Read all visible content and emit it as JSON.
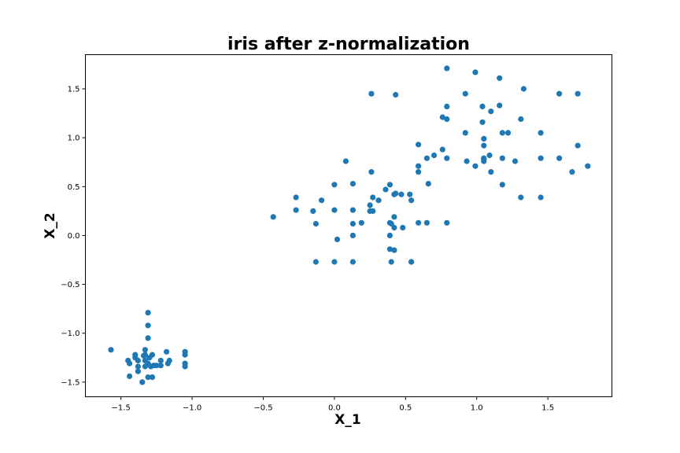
{
  "chart_data": {
    "type": "scatter",
    "title": "iris after z-normalization",
    "xlabel": "X_1",
    "ylabel": "X_2",
    "xlim": [
      -1.75,
      1.95
    ],
    "ylim": [
      -1.65,
      1.85
    ],
    "xticks": [
      -1.5,
      -1.0,
      -0.5,
      0.0,
      0.5,
      1.0,
      1.5
    ],
    "xtick_labels": [
      "−1.5",
      "−1.0",
      "−0.5",
      "0.0",
      "0.5",
      "1.0",
      "1.5"
    ],
    "yticks": [
      -1.5,
      -1.0,
      -0.5,
      0.0,
      0.5,
      1.0,
      1.5
    ],
    "ytick_labels": [
      "−1.5",
      "−1.0",
      "−0.5",
      "0.0",
      "0.5",
      "1.0",
      "1.5"
    ],
    "grid": false,
    "marker_color": "#1f77b4",
    "series": [
      {
        "x": [
          -1.57,
          -1.45,
          -1.44,
          -1.44,
          -1.4,
          -1.38,
          -1.38,
          -1.38,
          -1.35,
          -1.33,
          -1.33,
          -1.33,
          -1.33,
          -1.31,
          -1.31,
          -1.31,
          -1.31,
          -1.31,
          -1.29,
          -1.28,
          -1.28,
          -1.27,
          -1.22,
          -1.22,
          -1.18,
          -1.17,
          -1.16,
          -1.05,
          -1.05,
          -1.05,
          -1.05,
          -1.34,
          -1.3,
          -1.25,
          -1.4
        ],
        "y": [
          -1.17,
          -1.28,
          -1.31,
          -1.44,
          -1.22,
          -1.28,
          -1.34,
          -1.39,
          -1.5,
          -1.17,
          -1.22,
          -1.28,
          -1.34,
          -0.79,
          -0.92,
          -1.05,
          -1.31,
          -1.45,
          -1.34,
          -1.22,
          -1.45,
          -1.33,
          -1.28,
          -1.33,
          -1.19,
          -1.31,
          -1.28,
          -1.19,
          -1.22,
          -1.31,
          -1.34,
          -1.23,
          -1.25,
          -1.33,
          -1.25
        ]
      },
      {
        "x": [
          -0.43,
          -0.27,
          -0.27,
          -0.15,
          -0.13,
          -0.13,
          -0.09,
          0.0,
          0.0,
          0.0,
          0.02,
          0.08,
          0.13,
          0.13,
          0.13,
          0.13,
          0.13,
          0.19,
          0.25,
          0.25,
          0.26,
          0.26,
          0.27,
          0.27,
          0.31,
          0.36,
          0.39,
          0.39,
          0.39,
          0.39,
          0.4,
          0.4,
          0.42,
          0.42,
          0.42,
          0.43,
          0.42,
          0.43,
          0.47,
          0.48,
          0.53,
          0.54,
          0.54,
          0.54,
          0.59,
          0.59,
          0.59,
          0.59,
          0.65,
          0.65,
          0.66,
          0.7,
          0.76,
          0.76,
          0.79,
          0.79,
          0.79,
          0.79,
          0.79,
          0.92,
          0.92,
          0.93,
          0.99,
          0.99,
          1.04,
          1.04,
          1.05,
          1.05,
          1.05,
          1.05,
          1.05,
          1.09,
          1.1,
          1.1,
          1.16,
          1.16,
          1.18,
          1.18,
          1.18,
          1.22,
          1.27,
          1.31,
          1.31,
          1.33,
          1.45,
          1.45,
          1.45,
          1.58,
          1.58,
          1.67,
          1.71,
          1.71,
          1.78
        ],
        "y": [
          0.19,
          0.39,
          0.26,
          0.25,
          0.12,
          -0.27,
          0.36,
          0.52,
          0.26,
          -0.27,
          -0.04,
          0.76,
          0.53,
          0.26,
          0.12,
          0.0,
          -0.27,
          0.13,
          0.31,
          0.25,
          0.65,
          1.45,
          0.39,
          0.25,
          0.36,
          0.47,
          0.52,
          0.13,
          0.0,
          -0.14,
          -0.27,
          0.12,
          0.19,
          0.42,
          0.08,
          1.44,
          -0.15,
          0.43,
          0.42,
          0.08,
          0.42,
          0.36,
          -0.27,
          -0.27,
          0.93,
          0.71,
          0.65,
          0.13,
          0.79,
          0.13,
          0.53,
          0.82,
          1.21,
          0.88,
          1.71,
          1.32,
          1.19,
          0.79,
          0.13,
          1.45,
          1.05,
          0.76,
          1.67,
          0.71,
          1.32,
          1.16,
          0.99,
          0.92,
          0.79,
          0.76,
          0.78,
          0.82,
          1.27,
          0.65,
          1.61,
          1.33,
          1.05,
          0.79,
          0.52,
          1.05,
          0.76,
          1.19,
          0.39,
          1.5,
          1.05,
          0.79,
          0.39,
          1.45,
          0.79,
          0.65,
          1.45,
          0.92,
          0.71
        ]
      }
    ]
  }
}
